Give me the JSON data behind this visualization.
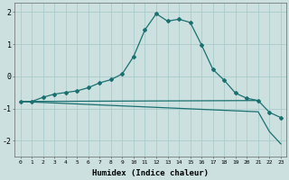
{
  "title": "",
  "xlabel": "Humidex (Indice chaleur)",
  "ylabel": "",
  "bg_color": "#cce0e0",
  "grid_color": "#aacccc",
  "line_color": "#1a7070",
  "xlim": [
    -0.5,
    23.5
  ],
  "ylim": [
    -2.5,
    2.3
  ],
  "xticks": [
    0,
    1,
    2,
    3,
    4,
    5,
    6,
    7,
    8,
    9,
    10,
    11,
    12,
    13,
    14,
    15,
    16,
    17,
    18,
    19,
    20,
    21,
    22,
    23
  ],
  "yticks": [
    -2,
    -1,
    0,
    1,
    2
  ],
  "curve1_x": [
    0,
    1,
    2,
    3,
    4,
    5,
    6,
    7,
    8,
    9,
    10,
    11,
    12,
    13,
    14,
    15,
    16,
    17,
    18,
    19,
    20,
    21,
    22,
    23
  ],
  "curve1_y": [
    -0.78,
    -0.78,
    -0.65,
    -0.55,
    -0.5,
    -0.45,
    -0.35,
    -0.2,
    -0.1,
    0.08,
    0.62,
    1.45,
    1.95,
    1.72,
    1.78,
    1.68,
    0.98,
    0.22,
    -0.12,
    -0.52,
    -0.68,
    -0.75,
    -1.12,
    -1.28
  ],
  "curve2_x": [
    0,
    21
  ],
  "curve2_y": [
    -0.78,
    -0.75
  ],
  "curve3_x": [
    0,
    21,
    22,
    23
  ],
  "curve3_y": [
    -0.78,
    -1.1,
    -1.72,
    -2.1
  ]
}
